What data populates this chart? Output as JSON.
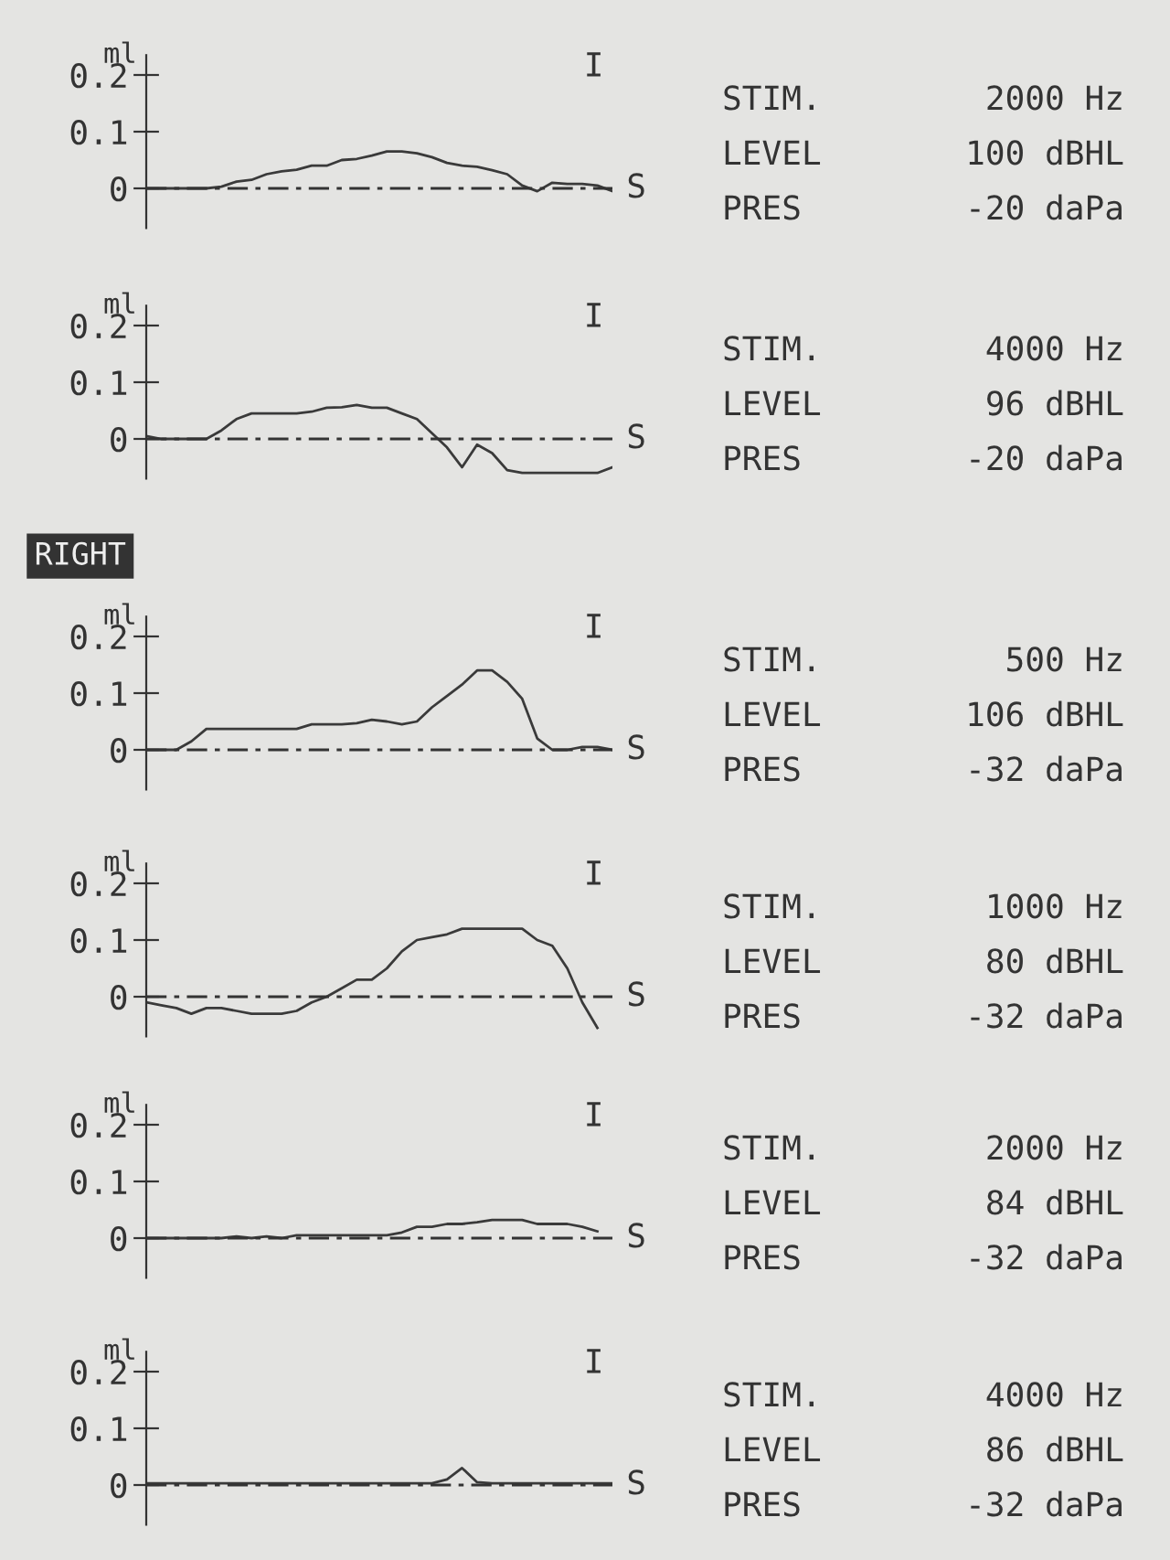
{
  "chart_data": [
    {
      "type": "line",
      "ylabel": "ml",
      "ylim": [
        -0.07,
        0.235
      ],
      "yticks": [
        0,
        0.1,
        0.2
      ],
      "grid": false,
      "categories": [
        null,
        null,
        null,
        null,
        null,
        null,
        null,
        null,
        null,
        null,
        null,
        null,
        null,
        null,
        null,
        null,
        null,
        null,
        null,
        null,
        null,
        null,
        null,
        null,
        null,
        null,
        null,
        null,
        null,
        null,
        null,
        null
      ],
      "series": [
        {
          "color": "#3a3a3a",
          "values": [
            0,
            0,
            0,
            0,
            0,
            0.003,
            0.012,
            0.015,
            0.025,
            0.03,
            0.033,
            0.04,
            0.04,
            0.05,
            0.052,
            0.058,
            0.065,
            0.065,
            0.062,
            0.055,
            0.045,
            0.04,
            0.038,
            0.032,
            0.025,
            0.005,
            -0.005,
            0.01,
            0.008,
            0.008,
            0.005,
            -0.005
          ]
        }
      ],
      "ref_lines": [
        {
          "axis": "y",
          "value": 0,
          "line_style": "dashed"
        }
      ],
      "annotations": [
        "I",
        "S",
        "STIM.",
        "2000 Hz",
        "LEVEL",
        "100 dBHL",
        "PRES",
        "-20 daPa"
      ]
    },
    {
      "type": "line",
      "ylabel": "ml",
      "ylim": [
        -0.07,
        0.235
      ],
      "yticks": [
        0,
        0.1,
        0.2
      ],
      "grid": false,
      "categories": [
        null,
        null,
        null,
        null,
        null,
        null,
        null,
        null,
        null,
        null,
        null,
        null,
        null,
        null,
        null,
        null,
        null,
        null,
        null,
        null,
        null,
        null,
        null,
        null,
        null,
        null,
        null,
        null,
        null,
        null,
        null,
        null
      ],
      "series": [
        {
          "color": "#3a3a3a",
          "values": [
            0.005,
            0,
            0,
            0,
            0,
            0.015,
            0.035,
            0.045,
            0.045,
            0.045,
            0.045,
            0.048,
            0.055,
            0.056,
            0.06,
            0.055,
            0.055,
            0.045,
            0.035,
            0.01,
            -0.015,
            -0.05,
            -0.01,
            -0.025,
            -0.055,
            -0.06,
            -0.06,
            -0.06,
            -0.06,
            -0.06,
            -0.06,
            -0.05
          ]
        }
      ],
      "ref_lines": [
        {
          "axis": "y",
          "value": 0,
          "line_style": "dashed"
        }
      ],
      "annotations": [
        "I",
        "S",
        "STIM.",
        "4000 Hz",
        "LEVEL",
        "96 dBHL",
        "PRES",
        "-20 daPa"
      ]
    },
    {
      "type": "line",
      "title": "RIGHT",
      "ylabel": "ml",
      "ylim": [
        -0.07,
        0.235
      ],
      "yticks": [
        0,
        0.1,
        0.2
      ],
      "grid": false,
      "categories": [
        null,
        null,
        null,
        null,
        null,
        null,
        null,
        null,
        null,
        null,
        null,
        null,
        null,
        null,
        null,
        null,
        null,
        null,
        null,
        null,
        null,
        null,
        null,
        null,
        null,
        null,
        null,
        null,
        null,
        null,
        null,
        null
      ],
      "series": [
        {
          "color": "#3a3a3a",
          "values": [
            0,
            0,
            0,
            0.015,
            0.037,
            0.037,
            0.037,
            0.037,
            0.037,
            0.037,
            0.037,
            0.045,
            0.045,
            0.045,
            0.047,
            0.053,
            0.05,
            0.045,
            0.05,
            0.075,
            0.095,
            0.115,
            0.14,
            0.14,
            0.12,
            0.09,
            0.02,
            0,
            0,
            0.005,
            0.005,
            0
          ]
        }
      ],
      "ref_lines": [
        {
          "axis": "y",
          "value": 0,
          "line_style": "dashed"
        }
      ],
      "annotations": [
        "I",
        "S",
        "STIM.",
        "500 Hz",
        "LEVEL",
        "106 dBHL",
        "PRES",
        "-32 daPa"
      ]
    },
    {
      "type": "line",
      "ylabel": "ml",
      "ylim": [
        -0.07,
        0.235
      ],
      "yticks": [
        0,
        0.1,
        0.2
      ],
      "grid": false,
      "categories": [
        null,
        null,
        null,
        null,
        null,
        null,
        null,
        null,
        null,
        null,
        null,
        null,
        null,
        null,
        null,
        null,
        null,
        null,
        null,
        null,
        null,
        null,
        null,
        null,
        null,
        null,
        null,
        null,
        null,
        null,
        null,
        null
      ],
      "series": [
        {
          "color": "#3a3a3a",
          "values": [
            -0.01,
            -0.015,
            -0.02,
            -0.03,
            -0.02,
            -0.02,
            -0.025,
            -0.03,
            -0.03,
            -0.03,
            -0.025,
            -0.01,
            0,
            0.015,
            0.03,
            0.03,
            0.05,
            0.08,
            0.1,
            0.105,
            0.11,
            0.12,
            0.12,
            0.12,
            0.12,
            0.12,
            0.1,
            0.09,
            0.05,
            -0.01,
            -0.055,
            null
          ]
        }
      ],
      "ref_lines": [
        {
          "axis": "y",
          "value": 0,
          "line_style": "dashed"
        }
      ],
      "annotations": [
        "I",
        "S",
        "STIM.",
        "1000 Hz",
        "LEVEL",
        "80 dBHL",
        "PRES",
        "-32 daPa"
      ]
    },
    {
      "type": "line",
      "ylabel": "ml",
      "ylim": [
        -0.07,
        0.235
      ],
      "yticks": [
        0,
        0.1,
        0.2
      ],
      "grid": false,
      "categories": [
        null,
        null,
        null,
        null,
        null,
        null,
        null,
        null,
        null,
        null,
        null,
        null,
        null,
        null,
        null,
        null,
        null,
        null,
        null,
        null,
        null,
        null,
        null,
        null,
        null,
        null,
        null,
        null,
        null,
        null,
        null,
        null
      ],
      "series": [
        {
          "color": "#3a3a3a",
          "values": [
            0,
            0,
            0,
            0,
            0,
            0,
            0.003,
            0,
            0.003,
            0,
            0.005,
            0.005,
            0.005,
            0.005,
            0.005,
            0.005,
            0.005,
            0.01,
            0.02,
            0.02,
            0.025,
            0.025,
            0.028,
            0.032,
            0.032,
            0.032,
            0.025,
            0.025,
            0.025,
            0.02,
            0.012,
            null
          ]
        }
      ],
      "ref_lines": [
        {
          "axis": "y",
          "value": 0,
          "line_style": "dashed"
        }
      ],
      "annotations": [
        "I",
        "S",
        "STIM.",
        "2000 Hz",
        "LEVEL",
        "84 dBHL",
        "PRES",
        "-32 daPa"
      ]
    },
    {
      "type": "line",
      "ylabel": "ml",
      "ylim": [
        -0.07,
        0.235
      ],
      "yticks": [
        0,
        0.1,
        0.2
      ],
      "grid": false,
      "categories": [
        null,
        null,
        null,
        null,
        null,
        null,
        null,
        null,
        null,
        null,
        null,
        null,
        null,
        null,
        null,
        null,
        null,
        null,
        null,
        null,
        null,
        null,
        null,
        null,
        null,
        null,
        null,
        null,
        null,
        null,
        null,
        null
      ],
      "series": [
        {
          "color": "#3a3a3a",
          "values": [
            0.003,
            0.003,
            0.003,
            0.003,
            0.003,
            0.003,
            0.003,
            0.003,
            0.003,
            0.003,
            0.003,
            0.003,
            0.003,
            0.003,
            0.003,
            0.003,
            0.003,
            0.003,
            0.003,
            0.003,
            0.01,
            0.03,
            0.005,
            0.003,
            0.003,
            0.003,
            0.003,
            0.003,
            0.003,
            0.003,
            0.003,
            0.003
          ]
        }
      ],
      "ref_lines": [
        {
          "axis": "y",
          "value": 0,
          "line_style": "dashed"
        }
      ],
      "annotations": [
        "I",
        "S",
        "STIM.",
        "4000 Hz",
        "LEVEL",
        "86 dBHL",
        "PRES",
        "-32 daPa"
      ]
    }
  ]
}
